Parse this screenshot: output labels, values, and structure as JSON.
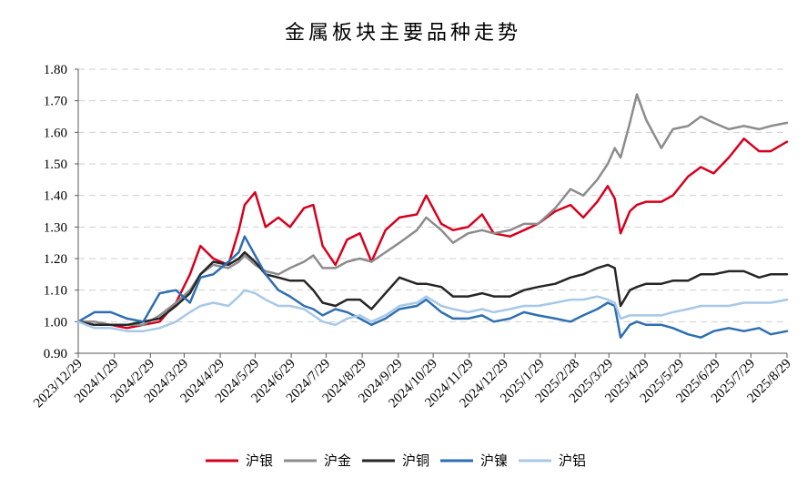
{
  "chart_data": {
    "type": "line",
    "title": "金属板块主要品种走势",
    "xlabel": "",
    "ylabel": "",
    "xlim": [
      "2023/12/29",
      "2025/8/29"
    ],
    "ylim": [
      0.9,
      1.8
    ],
    "grid": true,
    "legend": "bottom",
    "y_tick_labels": [
      "0.90",
      "1.00",
      "1.10",
      "1.20",
      "1.30",
      "1.40",
      "1.50",
      "1.60",
      "1.70",
      "1.80"
    ],
    "x_tick_labels": [
      "2023/12/29",
      "2024/1/29",
      "2024/2/29",
      "2024/3/29",
      "2024/4/29",
      "2024/5/29",
      "2024/6/29",
      "2024/7/29",
      "2024/8/29",
      "2024/9/29",
      "2024/10/29",
      "2024/11/29",
      "2024/12/29",
      "2025/1/29",
      "2025/2/28",
      "2025/3/29",
      "2025/4/29",
      "2025/5/29",
      "2025/6/29",
      "2025/7/29",
      "2025/8/29"
    ],
    "x": [
      "2023/12/29",
      "2024/1/12",
      "2024/1/26",
      "2024/2/9",
      "2024/2/23",
      "2024/3/8",
      "2024/3/22",
      "2024/4/3",
      "2024/4/12",
      "2024/4/23",
      "2024/5/6",
      "2024/5/15",
      "2024/5/20",
      "2024/5/29",
      "2024/6/7",
      "2024/6/18",
      "2024/6/28",
      "2024/7/10",
      "2024/7/18",
      "2024/7/26",
      "2024/8/6",
      "2024/8/16",
      "2024/8/27",
      "2024/9/6",
      "2024/9/18",
      "2024/9/30",
      "2024/10/15",
      "2024/10/23",
      "2024/11/5",
      "2024/11/15",
      "2024/11/28",
      "2024/12/10",
      "2024/12/20",
      "2025/1/3",
      "2025/1/15",
      "2025/1/27",
      "2025/2/11",
      "2025/2/24",
      "2025/3/7",
      "2025/3/19",
      "2025/3/28",
      "2025/4/3",
      "2025/4/8",
      "2025/4/16",
      "2025/4/22",
      "2025/4/30",
      "2025/5/13",
      "2025/5/23",
      "2025/6/5",
      "2025/6/16",
      "2025/6/27",
      "2025/7/10",
      "2025/7/23",
      "2025/8/5",
      "2025/8/15",
      "2025/8/29"
    ],
    "series": [
      {
        "name": "沪银",
        "color": "#d7001e",
        "values": [
          1.0,
          0.99,
          0.99,
          0.98,
          0.99,
          1.0,
          1.06,
          1.15,
          1.24,
          1.2,
          1.18,
          1.29,
          1.37,
          1.41,
          1.3,
          1.33,
          1.3,
          1.36,
          1.37,
          1.24,
          1.18,
          1.26,
          1.28,
          1.19,
          1.29,
          1.33,
          1.34,
          1.4,
          1.31,
          1.29,
          1.3,
          1.34,
          1.28,
          1.27,
          1.29,
          1.31,
          1.35,
          1.37,
          1.33,
          1.38,
          1.43,
          1.39,
          1.28,
          1.35,
          1.37,
          1.38,
          1.38,
          1.4,
          1.46,
          1.49,
          1.47,
          1.52,
          1.58,
          1.54,
          1.54,
          1.57
        ]
      },
      {
        "name": "沪金",
        "color": "#8c8c8c",
        "values": [
          1.0,
          1.0,
          0.99,
          0.99,
          0.99,
          1.02,
          1.06,
          1.1,
          1.15,
          1.18,
          1.17,
          1.19,
          1.21,
          1.18,
          1.16,
          1.15,
          1.17,
          1.19,
          1.21,
          1.17,
          1.17,
          1.19,
          1.2,
          1.19,
          1.22,
          1.25,
          1.29,
          1.33,
          1.29,
          1.25,
          1.28,
          1.29,
          1.28,
          1.29,
          1.31,
          1.31,
          1.36,
          1.42,
          1.4,
          1.45,
          1.5,
          1.55,
          1.52,
          1.63,
          1.72,
          1.64,
          1.55,
          1.61,
          1.62,
          1.65,
          1.63,
          1.61,
          1.62,
          1.61,
          1.62,
          1.63
        ]
      },
      {
        "name": "沪铜",
        "color": "#262626",
        "values": [
          1.0,
          0.99,
          0.99,
          0.99,
          1.0,
          1.01,
          1.05,
          1.09,
          1.15,
          1.19,
          1.18,
          1.2,
          1.22,
          1.19,
          1.15,
          1.14,
          1.13,
          1.13,
          1.1,
          1.06,
          1.05,
          1.07,
          1.07,
          1.04,
          1.09,
          1.14,
          1.12,
          1.12,
          1.11,
          1.08,
          1.08,
          1.09,
          1.08,
          1.08,
          1.1,
          1.11,
          1.12,
          1.14,
          1.15,
          1.17,
          1.18,
          1.17,
          1.05,
          1.1,
          1.11,
          1.12,
          1.12,
          1.13,
          1.13,
          1.15,
          1.15,
          1.16,
          1.16,
          1.14,
          1.15,
          1.15
        ]
      },
      {
        "name": "沪镍",
        "color": "#2e6fb0",
        "values": [
          1.0,
          1.03,
          1.03,
          1.01,
          1.0,
          1.09,
          1.1,
          1.06,
          1.14,
          1.15,
          1.19,
          1.22,
          1.27,
          1.21,
          1.15,
          1.1,
          1.08,
          1.05,
          1.04,
          1.02,
          1.04,
          1.03,
          1.01,
          0.99,
          1.01,
          1.04,
          1.05,
          1.07,
          1.03,
          1.01,
          1.01,
          1.02,
          1.0,
          1.01,
          1.03,
          1.02,
          1.01,
          1.0,
          1.02,
          1.04,
          1.06,
          1.05,
          0.95,
          0.99,
          1.0,
          0.99,
          0.99,
          0.98,
          0.96,
          0.95,
          0.97,
          0.98,
          0.97,
          0.98,
          0.96,
          0.97
        ]
      },
      {
        "name": "沪铝",
        "color": "#a7c8e8",
        "values": [
          1.0,
          0.98,
          0.98,
          0.97,
          0.97,
          0.98,
          1.0,
          1.03,
          1.05,
          1.06,
          1.05,
          1.08,
          1.1,
          1.09,
          1.07,
          1.05,
          1.05,
          1.04,
          1.02,
          1.0,
          0.99,
          1.01,
          1.02,
          1.0,
          1.02,
          1.05,
          1.06,
          1.08,
          1.05,
          1.04,
          1.03,
          1.04,
          1.03,
          1.04,
          1.05,
          1.05,
          1.06,
          1.07,
          1.07,
          1.08,
          1.07,
          1.06,
          1.01,
          1.02,
          1.02,
          1.02,
          1.02,
          1.03,
          1.04,
          1.05,
          1.05,
          1.05,
          1.06,
          1.06,
          1.06,
          1.07
        ]
      }
    ]
  }
}
